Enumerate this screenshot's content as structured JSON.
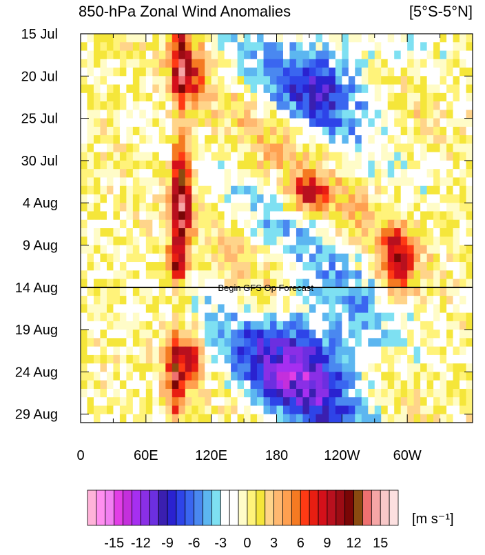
{
  "chart_data": {
    "type": "heatmap",
    "title": "850-hPa Zonal Wind Anomalies",
    "region_label": "[5°S-5°N]",
    "x_ticks": [
      "0",
      "60E",
      "120E",
      "180",
      "120W",
      "60W"
    ],
    "x_tick_values": [
      0,
      60,
      120,
      180,
      240,
      300
    ],
    "x_range": [
      0,
      360
    ],
    "y_ticks": [
      "15 Jul",
      "20 Jul",
      "25 Jul",
      "30 Jul",
      "4 Aug",
      "9 Aug",
      "14 Aug",
      "19 Aug",
      "24 Aug",
      "29 Aug"
    ],
    "y_range_days": [
      "15 Jul",
      "30 Aug"
    ],
    "forecast_start": "14 Aug",
    "forecast_label": "Begin GFS Op Forecast",
    "colorbar": {
      "unit_label": "[m s⁻¹]",
      "tick_labels": [
        "-15",
        "-12",
        "-9",
        "-6",
        "-3",
        "0",
        "3",
        "6",
        "9",
        "12",
        "15"
      ],
      "range": [
        -16,
        16
      ],
      "bin_width": 1,
      "colors": [
        "#ffb3d9",
        "#ff8ff0",
        "#f27ff2",
        "#e23ee6",
        "#c42fdc",
        "#a62ff0",
        "#8a2fe6",
        "#6c2fe0",
        "#3a1fb0",
        "#2a22d0",
        "#2e44e8",
        "#3a66f0",
        "#4a88f0",
        "#5cb6f0",
        "#7ee0f2",
        "#ffffff",
        "#ffffff",
        "#fffcc8",
        "#fff37a",
        "#f5e63a",
        "#ffd48a",
        "#ffb870",
        "#ffa050",
        "#f57a22",
        "#ff3a14",
        "#e81e12",
        "#d4101a",
        "#b8101e",
        "#9c0c14",
        "#7a0606",
        "#8a4a10",
        "#ee7070",
        "#f6a6a6",
        "#f8c8c8",
        "#fce0e0"
      ]
    },
    "anomaly_features": [
      {
        "kind": "westerly",
        "lon": [
          90,
          95
        ],
        "days": [
          "15 Jul",
          "22 Jul"
        ],
        "peak": 12
      },
      {
        "kind": "westerly",
        "lon": [
          105,
          110
        ],
        "days": [
          "17 Jul",
          "22 Jul"
        ],
        "peak": 6
      },
      {
        "kind": "westerly",
        "lon": [
          90,
          95
        ],
        "days": [
          "28 Jul",
          "9 Aug"
        ],
        "peak": 14
      },
      {
        "kind": "westerly",
        "lon": [
          85,
          90
        ],
        "days": [
          "10 Aug",
          "13 Aug"
        ],
        "peak": 8
      },
      {
        "kind": "westerly",
        "lon": [
          85,
          90
        ],
        "days": [
          "20 Aug",
          "29 Aug"
        ],
        "peak": 10
      },
      {
        "kind": "westerly",
        "lon": [
          100,
          105
        ],
        "days": [
          "20 Aug",
          "24 Aug"
        ],
        "peak": 8
      },
      {
        "kind": "westerly",
        "lon": [
          200,
          220
        ],
        "days": [
          "2 Aug",
          "4 Aug"
        ],
        "peak": 7
      },
      {
        "kind": "westerly",
        "lon": [
          280,
          300
        ],
        "days": [
          "8 Aug",
          "14 Aug"
        ],
        "peak": 9
      },
      {
        "kind": "easterly",
        "lon": [
          180,
          270
        ],
        "days": [
          "15 Jul",
          "25 Jul"
        ],
        "peak": -7
      },
      {
        "kind": "easterly",
        "lon": [
          150,
          260
        ],
        "days": [
          "16 Aug",
          "30 Aug"
        ],
        "peak": -10
      }
    ]
  }
}
